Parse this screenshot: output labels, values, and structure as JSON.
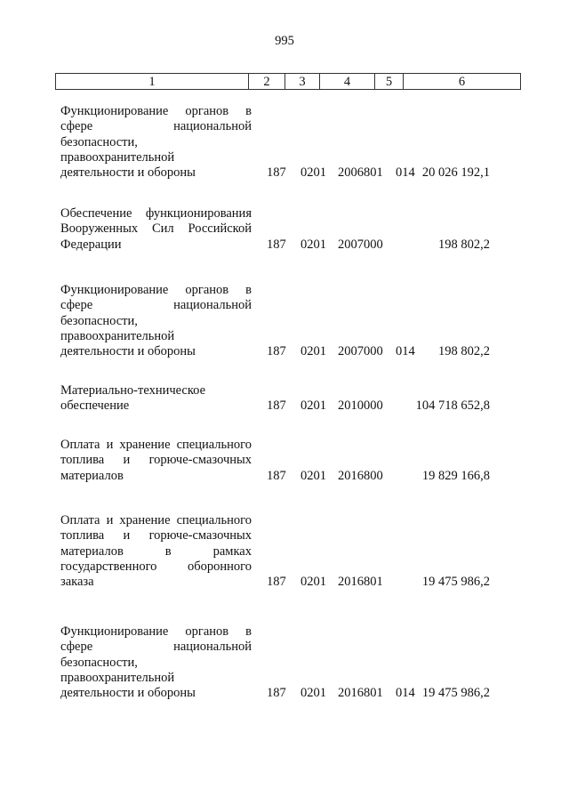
{
  "page_number": "995",
  "header": [
    "1",
    "2",
    "3",
    "4",
    "5",
    "6"
  ],
  "rows": [
    {
      "lines": [
        "Функционирование органов в",
        "сфере национальной",
        "безопасности,",
        "правоохранительной",
        "деятельности и обороны"
      ],
      "c2": "187",
      "c3": "0201",
      "c4": "2006801",
      "c5": "014",
      "c6": "20 026 192,1"
    },
    {
      "lines": [
        "Обеспечение функционирования",
        "Вооруженных Сил Российской",
        "Федерации"
      ],
      "c2": "187",
      "c3": "0201",
      "c4": "2007000",
      "c5": "",
      "c6": "198 802,2"
    },
    {
      "lines": [
        "Функционирование органов в",
        "сфере национальной",
        "безопасности,",
        "правоохранительной",
        "деятельности и обороны"
      ],
      "c2": "187",
      "c3": "0201",
      "c4": "2007000",
      "c5": "014",
      "c6": "198 802,2"
    },
    {
      "lines": [
        "Материально-техническое",
        "обеспечение"
      ],
      "c2": "187",
      "c3": "0201",
      "c4": "2010000",
      "c5": "",
      "c6": "104 718 652,8"
    },
    {
      "lines": [
        "Оплата и хранение специального",
        "топлива и горюче-смазочных",
        "материалов"
      ],
      "c2": "187",
      "c3": "0201",
      "c4": "2016800",
      "c5": "",
      "c6": "19 829 166,8"
    },
    {
      "lines": [
        "Оплата и хранение специального",
        "топлива и горюче-смазочных",
        "материалов в рамках",
        "государственного оборонного",
        "заказа"
      ],
      "c2": "187",
      "c3": "0201",
      "c4": "2016801",
      "c5": "",
      "c6": "19 475 986,2"
    },
    {
      "lines": [
        "Функционирование органов в",
        "сфере национальной",
        "безопасности,",
        "правоохранительной",
        "деятельности и обороны"
      ],
      "c2": "187",
      "c3": "0201",
      "c4": "2016801",
      "c5": "014",
      "c6": "19 475 986,2"
    }
  ]
}
